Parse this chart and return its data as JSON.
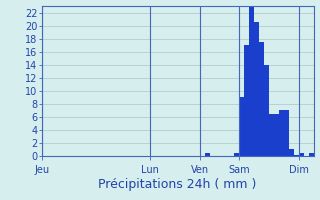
{
  "xlabel": "Précipitations 24h ( mm )",
  "background_color": "#d6eeee",
  "bar_color": "#1a3fcc",
  "grid_color": "#a8c8c8",
  "ylim": [
    0,
    23
  ],
  "yticks": [
    0,
    2,
    4,
    6,
    8,
    10,
    12,
    14,
    16,
    18,
    20,
    22
  ],
  "bar_values": [
    0,
    0,
    0,
    0,
    0,
    0,
    0,
    0,
    0,
    0,
    0,
    0,
    0,
    0,
    0,
    0,
    0,
    0,
    0,
    0,
    0,
    0,
    0,
    0,
    0,
    0,
    0,
    0,
    0,
    0,
    0,
    0,
    0,
    0.5,
    0,
    0,
    0,
    0,
    0,
    0.5,
    9,
    17,
    23,
    20.5,
    17.5,
    14,
    6.5,
    6.5,
    7,
    7,
    1,
    0.2,
    0.5,
    0,
    0.5
  ],
  "n_bars": 55,
  "day_labels": [
    "Jeu",
    "Lun",
    "Ven",
    "Sam",
    "Dim"
  ],
  "day_positions": [
    0,
    22,
    32,
    40,
    52
  ],
  "tick_fontsize": 7,
  "xlabel_fontsize": 9,
  "spine_color": "#4466bb",
  "tick_color": "#2244aa"
}
